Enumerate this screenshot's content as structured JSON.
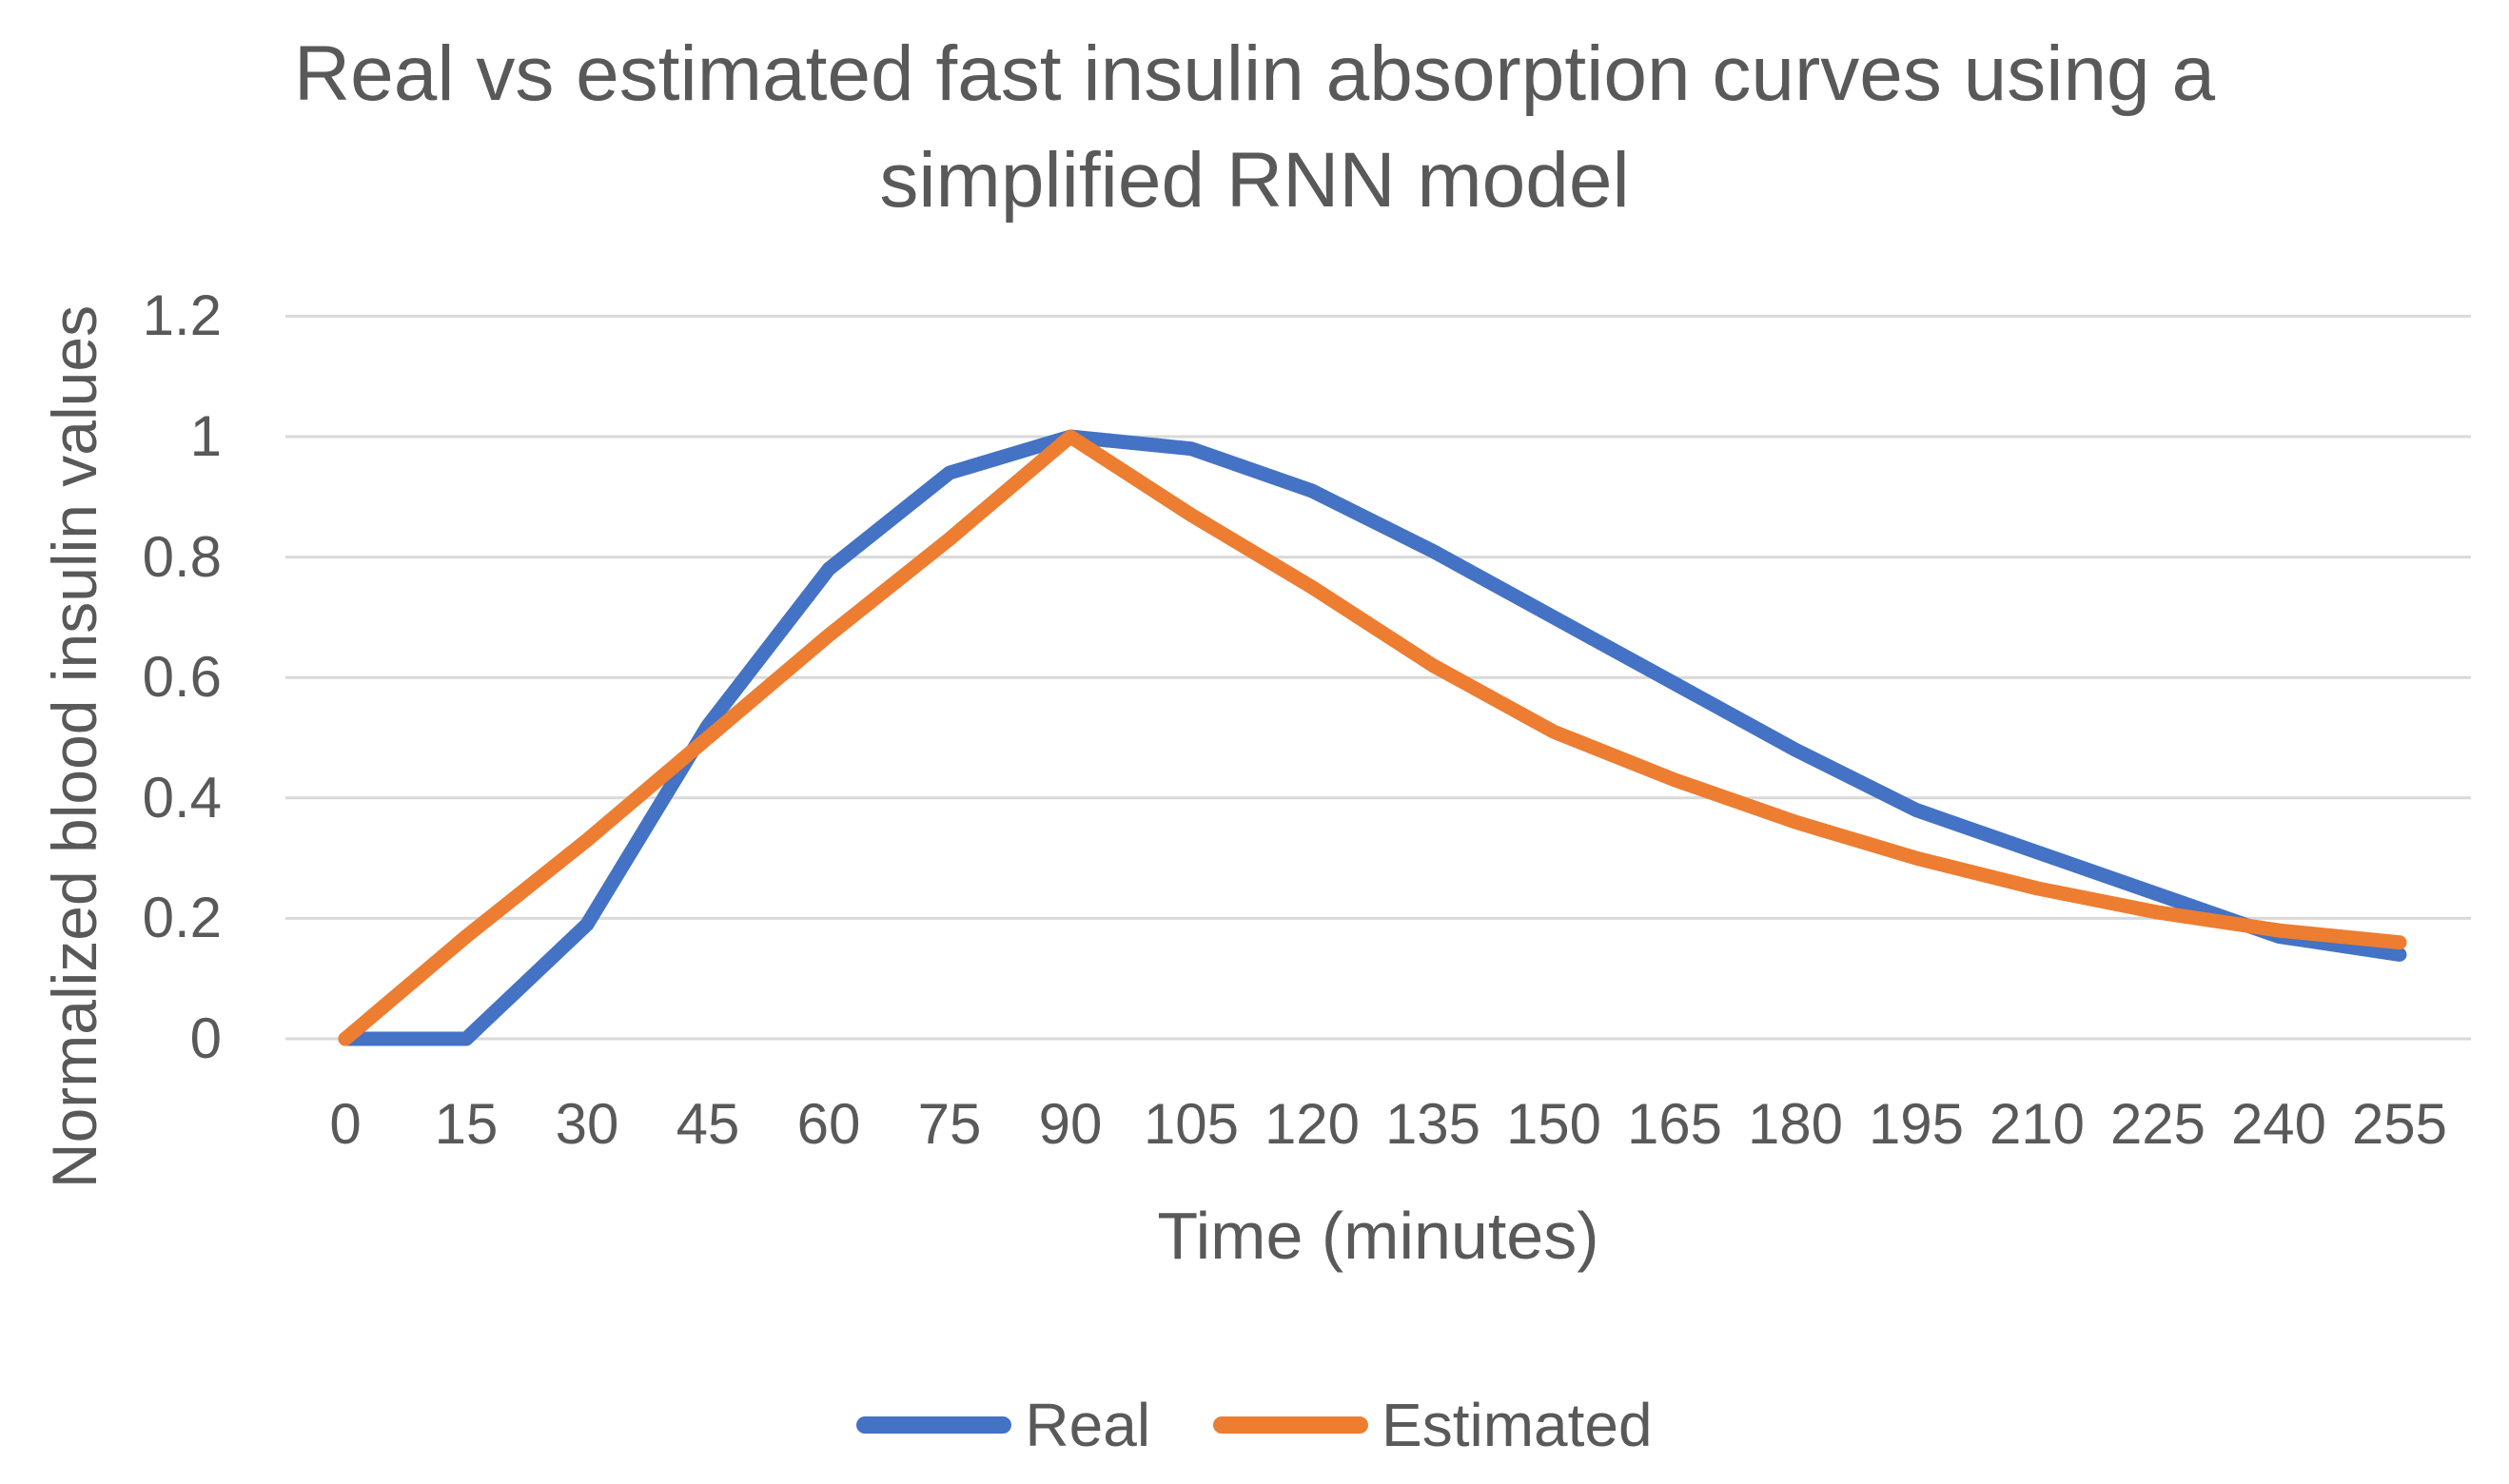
{
  "title": "Real vs estimated fast insulin absorption curves using a simplified RNN model",
  "title_lines": [
    "Real vs estimated fast insulin absorption curves using a",
    "simplified RNN model"
  ],
  "axes": {
    "x": {
      "title": "Time (minutes)",
      "tick_labels": [
        "0",
        "15",
        "30",
        "45",
        "60",
        "75",
        "90",
        "105",
        "120",
        "135",
        "150",
        "165",
        "180",
        "195",
        "210",
        "225",
        "240",
        "255"
      ]
    },
    "y": {
      "title": "Normalized blood insulin values",
      "tick_labels": [
        "1.2",
        "1",
        "0.8",
        "0.6",
        "0.4",
        "0.2",
        "0"
      ]
    }
  },
  "legend": {
    "items": [
      {
        "label": "Real",
        "color": "#4472C4"
      },
      {
        "label": "Estimated",
        "color": "#ED7D31"
      }
    ]
  },
  "colors": {
    "background": "#FFFFFF",
    "text": "#595959",
    "gridline": "#D9D9D9",
    "real": "#4472C4",
    "estimated": "#ED7D31"
  },
  "chart_data": {
    "type": "line",
    "title": "Real vs estimated fast insulin absorption curves using a simplified RNN model",
    "xlabel": "Time (minutes)",
    "ylabel": "Normalized blood insulin values",
    "x": [
      0,
      15,
      30,
      45,
      60,
      75,
      90,
      105,
      120,
      135,
      150,
      165,
      180,
      195,
      210,
      225,
      240,
      255
    ],
    "series": [
      {
        "name": "Real",
        "color": "#4472C4",
        "values": [
          0,
          0,
          0.19,
          0.52,
          0.78,
          0.94,
          1.0,
          0.98,
          0.91,
          0.81,
          0.7,
          0.59,
          0.48,
          0.38,
          0.31,
          0.24,
          0.17,
          0.14
        ]
      },
      {
        "name": "Estimated",
        "color": "#ED7D31",
        "values": [
          0,
          0.17,
          0.33,
          0.5,
          0.67,
          0.83,
          1.0,
          0.87,
          0.75,
          0.62,
          0.51,
          0.43,
          0.36,
          0.3,
          0.25,
          0.21,
          0.18,
          0.16
        ]
      }
    ],
    "ylim": [
      0,
      1.2
    ],
    "ytick_step": 0.2,
    "xtick_step": 15,
    "grid": "horizontal-only",
    "legend_position": "bottom"
  }
}
